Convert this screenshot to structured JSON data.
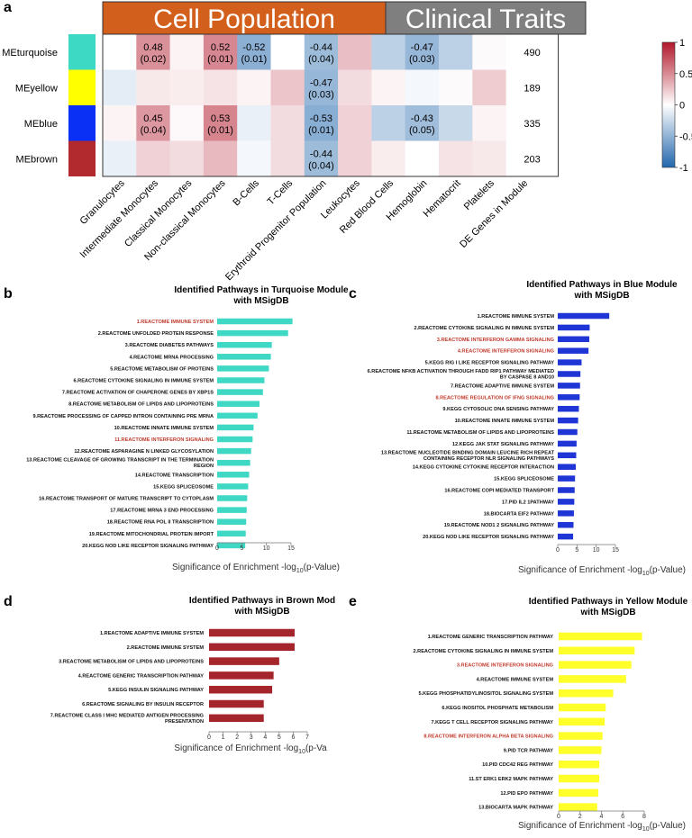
{
  "panel_labels": {
    "a": "a",
    "b": "b",
    "c": "c",
    "d": "d",
    "e": "e"
  },
  "heatmap": {
    "group_headers": [
      "Cell Population",
      "Clinical Traits"
    ],
    "group_colors": [
      "#d35f1c",
      "#7f7f7f"
    ],
    "modules": [
      {
        "name": "MEturquoise",
        "color": "#3ed9c4",
        "count": "490"
      },
      {
        "name": "MEyellow",
        "color": "#ffff00",
        "count": "189"
      },
      {
        "name": "MEblue",
        "color": "#0a2ff5",
        "count": "335"
      },
      {
        "name": "MEbrown",
        "color": "#b22a2e",
        "count": "203"
      }
    ],
    "columns": [
      "Granulocytes",
      "Intermediate Monocytes",
      "Classical Monocytes",
      "Non-classical Monocytes",
      "B-Cells",
      "T-Cells",
      "Erythroid Progenitor Population",
      "Leukocytes",
      "Red Blood Cells",
      "Hemoglobin",
      "Hematocrit",
      "Platelets",
      "DE Genes in Module"
    ],
    "values": [
      [
        0.0,
        0.48,
        0.05,
        0.52,
        -0.52,
        0.0,
        -0.44,
        0.28,
        -0.3,
        -0.47,
        -0.3,
        0.02
      ],
      [
        -0.12,
        0.1,
        0.08,
        0.12,
        0.05,
        0.25,
        -0.47,
        0.15,
        0.05,
        -0.05,
        0.02,
        0.22
      ],
      [
        0.05,
        0.45,
        0.03,
        0.53,
        -0.1,
        0.15,
        -0.53,
        0.2,
        -0.3,
        -0.43,
        -0.25,
        0.05
      ],
      [
        -0.1,
        0.2,
        0.15,
        0.3,
        -0.05,
        0.15,
        -0.44,
        0.2,
        0.08,
        0.0,
        0.12,
        0.1
      ]
    ],
    "cell_labels": [
      {
        "row": 0,
        "col": 1,
        "r": "0.48",
        "p": "(0.02)"
      },
      {
        "row": 0,
        "col": 3,
        "r": "0.52",
        "p": "(0.01)"
      },
      {
        "row": 0,
        "col": 4,
        "r": "-0.52",
        "p": "(0.01)"
      },
      {
        "row": 0,
        "col": 6,
        "r": "-0.44",
        "p": "(0.04)"
      },
      {
        "row": 0,
        "col": 9,
        "r": "-0.47",
        "p": "(0.03)"
      },
      {
        "row": 1,
        "col": 6,
        "r": "-0.47",
        "p": "(0.03)"
      },
      {
        "row": 2,
        "col": 1,
        "r": "0.45",
        "p": "(0.04)"
      },
      {
        "row": 2,
        "col": 3,
        "r": "0.53",
        "p": "(0.01)"
      },
      {
        "row": 2,
        "col": 6,
        "r": "-0.53",
        "p": "(0.01)"
      },
      {
        "row": 2,
        "col": 9,
        "r": "-0.43",
        "p": "(0.05)"
      },
      {
        "row": 3,
        "col": 6,
        "r": "-0.44",
        "p": "(0.04)"
      }
    ],
    "colorbar": {
      "ticks": [
        "1",
        "0.5",
        "0",
        "-0.5",
        "-1"
      ],
      "tick_values": [
        1,
        0.5,
        0,
        -0.5,
        -1
      ],
      "pos_color": "#b2182b",
      "neg_color": "#2166ac"
    }
  },
  "chart_data": [
    {
      "type": "bar",
      "orientation": "horizontal",
      "title": "Identified Pathways in Turquoise Module",
      "subtitle": "with MSigDB",
      "xlabel_prefix": "Significance of Enrichment -log",
      "xlabel_sub": "10",
      "xlabel_suffix": "(p-Value)",
      "xlim": [
        0,
        15
      ],
      "xticks": [
        "0",
        "5",
        "10",
        "15"
      ],
      "xtick_values": [
        0,
        5,
        10,
        15
      ],
      "bar_color": "#3fd8c5",
      "highlight_color": "#c0392b",
      "categories": [
        "1.REACTOME IMMUNE SYSTEM",
        "2.REACTOME UNFOLDED PROTEIN RESPONSE",
        "3.REACTOME DIABETES PATHWAYS",
        "4.REACTOME MRNA PROCESSING",
        "5.REACTOME METABOLISM OF PROTEINS",
        "6.REACTOME CYTOKINE SIGNALING IN IMMUNE SYSTEM",
        "7.REACTOME ACTIVATION OF CHAPERONE GENES BY XBP1S",
        "8.REACTOME METABOLISM OF LIPIDS AND LIPOPROTEINS",
        "9.REACTOME PROCESSING OF CAPPED INTRON CONTAINING PRE MRNA",
        "10.REACTOME INNATE IMMUNE SYSTEM",
        "11.REACTOME INTERFERON SIGNALING",
        "12.REACTOME ASPARAGINE N LINKED GLYCOSYLATION",
        "13.REACTOME CLEAVAGE OF GROWING TRANSCRIPT IN THE TERMINATION REGION",
        "14.REACTOME TRANSCRIPTION",
        "15.KEGG SPLICEOSOME",
        "16.REACTOME TRANSPORT OF MATURE TRANSCRIPT TO CYTOPLASM",
        "17.REACTOME MRNA 3 END PROCESSING",
        "18.REACTOME RNA POL II TRANSCRIPTION",
        "19.REACTOME MITOCHONDRIAL PROTEIN IMPORT",
        "20.KEGG NOD LIKE RECEPTOR SIGNALING PATHWAY"
      ],
      "values": [
        15.3,
        14.4,
        11.1,
        10.9,
        10.5,
        9.6,
        9.3,
        8.6,
        8.2,
        7.4,
        7.2,
        6.9,
        6.7,
        6.5,
        6.3,
        6.1,
        6.0,
        5.9,
        5.8,
        5.7
      ],
      "highlight": [
        0,
        10
      ]
    },
    {
      "type": "bar",
      "orientation": "horizontal",
      "title": "Identified Pathways in Blue Module",
      "subtitle": "with MSigDB",
      "xlabel_prefix": "Significance of Enrichment -log",
      "xlabel_sub": "10",
      "xlabel_suffix": "(p-Value)",
      "xlim": [
        0,
        15
      ],
      "xticks": [
        "0",
        "5",
        "10",
        "15"
      ],
      "xtick_values": [
        0,
        5,
        10,
        15
      ],
      "bar_color": "#1f35d6",
      "highlight_color": "#c0392b",
      "categories": [
        "1.REACTOME IMMUNE SYSTEM",
        "2.REACTOME CYTOKINE SIGNALING IN IMMUNE SYSTEM",
        "3.REACTOME INTERFERON GAMMA SIGNALING",
        "4.REACTOME INTERFERON SIGNALING",
        "5.KEGG RIG I LIKE RECEPTOR SIGNALING PATHWAY",
        "6.REACTOME NFKB ACTIVATION THROUGH FADD RIP1 PATHWAY MEDIATED BY CASPASE 8 AND10",
        "7.REACTOME ADAPTIVE IMMUNE SYSTEM",
        "8.REACTOME REGULATION OF IFNG SIGNALING",
        "9.KEGG CYTOSOLIC DNA SENSING PATHWAY",
        "10.REACTOME INNATE IMMUNE SYSTEM",
        "11.REACTOME METABOLISM OF LIPIDS AND LIPOPROTEINS",
        "12.KEGG JAK STAT SIGNALING PATHWAY",
        "13.REACTOME NUCLEOTIDE BINDING DOMAIN LEUCINE RICH REPEAT CONTAINING RECEPTOR NLR SIGNALING PATHWAYS",
        "14.KEGG CYTOKINE CYTOKINE RECEPTOR INTERACTION",
        "15.KEGG SPLICEOSOME",
        "16.REACTOME COPI MEDIATED TRANSPORT",
        "17.PID IL2 1PATHWAY",
        "18.BIOCARTA EIF2 PATHWAY",
        "19.REACTOME NOD1 2 SIGNALING PATHWAY",
        "20.KEGG NOD LIKE RECEPTOR SIGNALING PATHWAY"
      ],
      "values": [
        13.4,
        8.3,
        8.2,
        8.0,
        6.2,
        5.9,
        5.8,
        5.7,
        5.5,
        5.3,
        5.1,
        4.9,
        4.8,
        4.7,
        4.5,
        4.4,
        4.3,
        4.2,
        4.1,
        4.0
      ],
      "highlight": [
        2,
        3,
        7
      ]
    },
    {
      "type": "bar",
      "orientation": "horizontal",
      "title": "Identified Pathways in Brown Mod",
      "subtitle": "with MSigDB",
      "xlabel_prefix": "Significance of Enrichment -log",
      "xlabel_sub": "10",
      "xlabel_suffix": "(p-Va",
      "xlim": [
        0,
        7
      ],
      "xticks": [
        "0",
        "1",
        "2",
        "3",
        "4",
        "5",
        "6",
        "7"
      ],
      "xtick_values": [
        0,
        1,
        2,
        3,
        4,
        5,
        6,
        7
      ],
      "bar_color": "#a5252c",
      "highlight_color": "#c0392b",
      "categories": [
        "1.REACTOME ADAPTIVE IMMUNE SYSTEM",
        "2.REACTOME IMMUNE SYSTEM",
        "3.REACTOME METABOLISM OF LIPIDS AND LIPOPROTEINS",
        "4.REACTOME GENERIC TRANSCRIPTION PATHWAY",
        "5.KEGG INSULIN SIGNALING PATHWAY",
        "6.REACTOME SIGNALING BY INSULIN RECEPTOR",
        "7.REACTOME CLASS I MHC MEDIATED ANTIGEN PROCESSING PRESENTATION"
      ],
      "values": [
        6.1,
        6.1,
        5.0,
        4.6,
        4.5,
        3.9,
        3.9
      ],
      "highlight": []
    },
    {
      "type": "bar",
      "orientation": "horizontal",
      "title": "Identified Pathways in Yellow Module",
      "subtitle": "with MSigDB",
      "xlabel_prefix": "Significance of Enrichment -log",
      "xlabel_sub": "10",
      "xlabel_suffix": "(p-Value)",
      "xlim": [
        0,
        8
      ],
      "xticks": [
        "0",
        "2",
        "4",
        "6",
        "8"
      ],
      "xtick_values": [
        0,
        2,
        4,
        6,
        8
      ],
      "bar_color": "#ffff2a",
      "highlight_color": "#c0392b",
      "categories": [
        "1.REACTOME GENERIC TRANSCRIPTION PATHWAY",
        "2.REACTOME CYTOKINE SIGNALING IN IMMUNE SYSTEM",
        "3.REACTOME INTERFERON SIGNALING",
        "4.REACTOME IMMUNE SYSTEM",
        "5.KEGG PHOSPHATIDYLINOSITOL SIGNALING SYSTEM",
        "6.KEGG INOSITOL PHOSPHATE METABOLISM",
        "7.KEGG T CELL RECEPTOR SIGNALING PATHWAY",
        "8.REACTOME INTERFERON ALPHA BETA SIGNALING",
        "9.PID TCR PATHWAY",
        "10.PID CDC42 REG PATHWAY",
        "11.ST ERK1 ERK2 MAPK PATHWAY",
        "12.PID EPO PATHWAY",
        "13.BIOCARTA MAPK PATHWAY"
      ],
      "values": [
        7.8,
        7.1,
        6.8,
        6.3,
        5.1,
        4.4,
        4.3,
        4.1,
        4.0,
        3.8,
        3.8,
        3.7,
        3.6
      ],
      "highlight": [
        2,
        7
      ]
    }
  ]
}
